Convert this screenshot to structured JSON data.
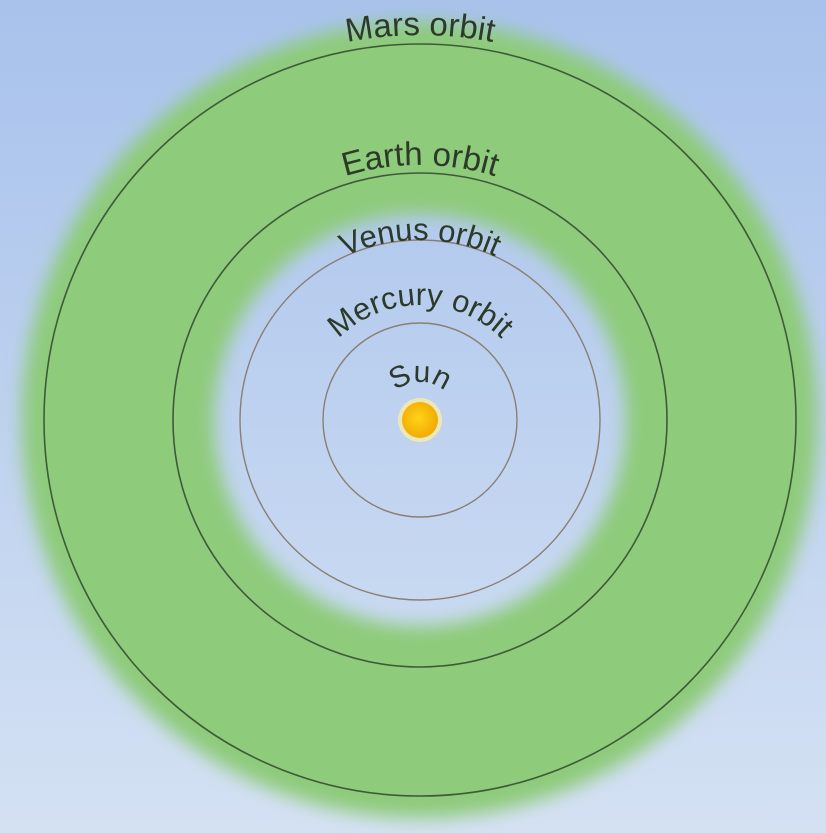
{
  "nodes": [
    {
      "label": "Mars orbit"
    },
    {
      "label": "Earth orbit"
    },
    {
      "label": "Venus orbit"
    },
    {
      "label": "Mercury orbit"
    },
    {
      "label": "Sun"
    }
  ]
}
